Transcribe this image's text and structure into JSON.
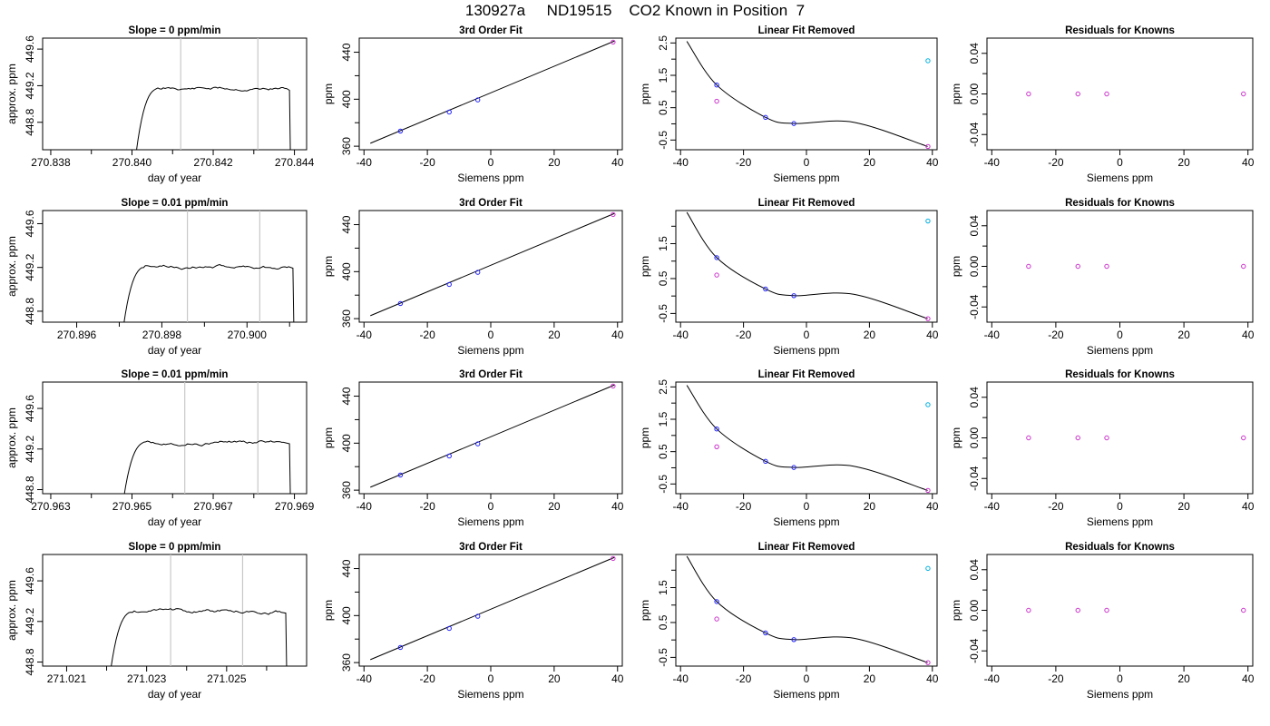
{
  "page_title": "130927a     ND19515    CO2 Known in Position  7",
  "colors": {
    "axis": "#000000",
    "line": "#000000",
    "grid": "#c8c8c8",
    "blue": "#2020ff",
    "magenta": "#cc33cc",
    "cyan": "#00b0e0"
  },
  "chart_data": [
    {
      "type": "line",
      "row": 0,
      "col": 0,
      "title": "Slope =  0  ppm/min",
      "xlabel": "day of year",
      "ylabel": "approx. ppm",
      "xlim": [
        270.8378,
        270.8443
      ],
      "ylim": [
        448.5,
        449.72
      ],
      "xticks": [
        270.838,
        270.84,
        270.842,
        270.844
      ],
      "xtick_labels": [
        "270.838",
        "270.840",
        "270.842",
        "270.844"
      ],
      "xticks_minor": [
        270.839,
        270.841,
        270.843
      ],
      "yticks": [
        448.8,
        449.2,
        449.6
      ],
      "ytick_labels": [
        "448.8",
        "449.2",
        "449.6"
      ],
      "vlines": [
        270.8412,
        270.8431
      ],
      "trace": {
        "x_start": 270.8401,
        "x_end": 270.8439,
        "y_level": 449.17,
        "noise": 0.018,
        "seed": 11
      }
    },
    {
      "type": "line",
      "row": 0,
      "col": 1,
      "title": "3rd Order Fit",
      "xlabel": "Siemens ppm",
      "ylabel": "ppm",
      "xlim": [
        -41.5,
        41.5
      ],
      "ylim": [
        357,
        452
      ],
      "xticks": [
        -40,
        -20,
        0,
        20,
        40
      ],
      "xtick_labels": [
        "-40",
        "-20",
        "0",
        "20",
        "40"
      ],
      "yticks": [
        360,
        400,
        440
      ],
      "ytick_labels": [
        "360",
        "400",
        "440"
      ],
      "yticks_minor": [
        380,
        420
      ],
      "fit_line": [
        [
          -38,
          362.5
        ],
        [
          39,
          449.5
        ]
      ],
      "points": [
        {
          "x": -28.5,
          "y": 372.9,
          "color": "blue"
        },
        {
          "x": -13.1,
          "y": 389.1,
          "color": "blue"
        },
        {
          "x": -4.1,
          "y": 399.4,
          "color": "blue"
        },
        {
          "x": 38.6,
          "y": 448.6,
          "color": "magenta"
        }
      ]
    },
    {
      "type": "scatter",
      "row": 0,
      "col": 2,
      "title": "Linear Fit Removed",
      "xlabel": "Siemens ppm",
      "ylabel": "ppm",
      "xlim": [
        -41.5,
        41.5
      ],
      "ylim": [
        -0.8,
        2.65
      ],
      "xticks": [
        -40,
        -20,
        0,
        20,
        40
      ],
      "xtick_labels": [
        "-40",
        "-20",
        "0",
        "20",
        "40"
      ],
      "yticks": [
        -0.5,
        0.5,
        1.5,
        2.5
      ],
      "ytick_labels": [
        "-0.5",
        "0.5",
        "1.5",
        "2.5"
      ],
      "yticks_minor": [
        0,
        1,
        2
      ],
      "curve_points": [
        [
          -38,
          2.55
        ],
        [
          -28.5,
          1.2
        ],
        [
          -13,
          0.2
        ],
        [
          -4,
          0.01
        ],
        [
          15,
          0.05
        ],
        [
          38.5,
          -0.7
        ]
      ],
      "points": [
        {
          "x": -28.5,
          "y": 1.2,
          "color": "blue"
        },
        {
          "x": -28.5,
          "y": 0.7,
          "color": "magenta"
        },
        {
          "x": -13,
          "y": 0.2,
          "color": "blue"
        },
        {
          "x": -4,
          "y": 0.01,
          "color": "blue"
        },
        {
          "x": 38.6,
          "y": 1.95,
          "color": "cyan"
        },
        {
          "x": 38.6,
          "y": -0.7,
          "color": "magenta"
        }
      ]
    },
    {
      "type": "scatter",
      "row": 0,
      "col": 3,
      "title": "Residuals for Knowns",
      "xlabel": "Siemens ppm",
      "ylabel": "ppm",
      "xlim": [
        -41.5,
        41.5
      ],
      "ylim": [
        -0.055,
        0.055
      ],
      "xticks": [
        -40,
        -20,
        0,
        20,
        40
      ],
      "xtick_labels": [
        "-40",
        "-20",
        "0",
        "20",
        "40"
      ],
      "yticks": [
        -0.04,
        0,
        0.04
      ],
      "ytick_labels": [
        "-0.04",
        "0.00",
        "0.04"
      ],
      "yticks_minor": [
        -0.02,
        0.02
      ],
      "points": [
        {
          "x": -28.5,
          "y": 0,
          "color": "magenta"
        },
        {
          "x": -13.1,
          "y": 0,
          "color": "magenta"
        },
        {
          "x": -4.1,
          "y": 0,
          "color": "magenta"
        },
        {
          "x": 38.6,
          "y": 0,
          "color": "magenta"
        }
      ]
    },
    {
      "type": "line",
      "row": 1,
      "col": 0,
      "title": "Slope =  0.01  ppm/min",
      "xlabel": "day of year",
      "ylabel": "approx. ppm",
      "xlim": [
        270.8952,
        270.9014
      ],
      "ylim": [
        448.7,
        449.72
      ],
      "xticks": [
        270.896,
        270.898,
        270.9
      ],
      "xtick_labels": [
        "270.896",
        "270.898",
        "270.900"
      ],
      "xticks_minor": [
        270.897,
        270.899,
        270.901
      ],
      "yticks": [
        448.8,
        449.2,
        449.6
      ],
      "ytick_labels": [
        "448.8",
        "449.2",
        "449.6"
      ],
      "vlines": [
        270.8986,
        270.9003
      ],
      "trace": {
        "x_start": 270.8971,
        "x_end": 270.9011,
        "y_level": 449.21,
        "noise": 0.016,
        "seed": 23
      }
    },
    {
      "type": "line",
      "row": 1,
      "col": 1,
      "title": "3rd Order Fit",
      "xlabel": "Siemens ppm",
      "ylabel": "ppm",
      "xlim": [
        -41.5,
        41.5
      ],
      "ylim": [
        357,
        452
      ],
      "xticks": [
        -40,
        -20,
        0,
        20,
        40
      ],
      "xtick_labels": [
        "-40",
        "-20",
        "0",
        "20",
        "40"
      ],
      "yticks": [
        360,
        400,
        440
      ],
      "ytick_labels": [
        "360",
        "400",
        "440"
      ],
      "yticks_minor": [
        380,
        420
      ],
      "fit_line": [
        [
          -38,
          362.5
        ],
        [
          39,
          449.5
        ]
      ],
      "points": [
        {
          "x": -28.5,
          "y": 372.9,
          "color": "blue"
        },
        {
          "x": -13.1,
          "y": 389.1,
          "color": "blue"
        },
        {
          "x": -4.1,
          "y": 399.4,
          "color": "blue"
        },
        {
          "x": 38.6,
          "y": 448.6,
          "color": "magenta"
        }
      ]
    },
    {
      "type": "scatter",
      "row": 1,
      "col": 2,
      "title": "Linear Fit Removed",
      "xlabel": "Siemens ppm",
      "ylabel": "ppm",
      "xlim": [
        -41.5,
        41.5
      ],
      "ylim": [
        -0.75,
        2.45
      ],
      "xticks": [
        -40,
        -20,
        0,
        20,
        40
      ],
      "xtick_labels": [
        "-40",
        "-20",
        "0",
        "20",
        "40"
      ],
      "yticks": [
        -0.5,
        0.5,
        1.5
      ],
      "ytick_labels": [
        "-0.5",
        "0.5",
        "1.5"
      ],
      "yticks_minor": [
        0,
        1,
        2
      ],
      "curve_points": [
        [
          -38,
          2.4
        ],
        [
          -28.5,
          1.1
        ],
        [
          -13,
          0.2
        ],
        [
          -4,
          0.01
        ],
        [
          15,
          0.05
        ],
        [
          38.5,
          -0.65
        ]
      ],
      "points": [
        {
          "x": -28.5,
          "y": 1.1,
          "color": "blue"
        },
        {
          "x": -28.5,
          "y": 0.6,
          "color": "magenta"
        },
        {
          "x": -13,
          "y": 0.2,
          "color": "blue"
        },
        {
          "x": -4,
          "y": 0.01,
          "color": "blue"
        },
        {
          "x": 38.6,
          "y": 2.15,
          "color": "cyan"
        },
        {
          "x": 38.6,
          "y": -0.65,
          "color": "magenta"
        }
      ]
    },
    {
      "type": "scatter",
      "row": 1,
      "col": 3,
      "title": "Residuals for Knowns",
      "xlabel": "Siemens ppm",
      "ylabel": "ppm",
      "xlim": [
        -41.5,
        41.5
      ],
      "ylim": [
        -0.055,
        0.055
      ],
      "xticks": [
        -40,
        -20,
        0,
        20,
        40
      ],
      "xtick_labels": [
        "-40",
        "-20",
        "0",
        "20",
        "40"
      ],
      "yticks": [
        -0.04,
        0,
        0.04
      ],
      "ytick_labels": [
        "-0.04",
        "0.00",
        "0.04"
      ],
      "yticks_minor": [
        -0.02,
        0.02
      ],
      "points": [
        {
          "x": -28.5,
          "y": 0,
          "color": "magenta"
        },
        {
          "x": -13.1,
          "y": 0,
          "color": "magenta"
        },
        {
          "x": -4.1,
          "y": 0,
          "color": "magenta"
        },
        {
          "x": 38.6,
          "y": 0,
          "color": "magenta"
        }
      ]
    },
    {
      "type": "line",
      "row": 2,
      "col": 0,
      "title": "Slope =  0.01  ppm/min",
      "xlabel": "day of year",
      "ylabel": "approx. ppm",
      "xlim": [
        270.9628,
        270.9693
      ],
      "ylim": [
        448.76,
        449.86
      ],
      "xticks": [
        270.963,
        270.965,
        270.967,
        270.969
      ],
      "xtick_labels": [
        "270.963",
        "270.965",
        "270.967",
        "270.969"
      ],
      "xticks_minor": [
        270.964,
        270.966,
        270.968
      ],
      "yticks": [
        448.8,
        449.2,
        449.6
      ],
      "ytick_labels": [
        "448.8",
        "449.2",
        "449.6"
      ],
      "vlines": [
        270.9663,
        270.9681
      ],
      "trace": {
        "x_start": 270.9648,
        "x_end": 270.9689,
        "y_level": 449.27,
        "noise": 0.017,
        "seed": 37
      }
    },
    {
      "type": "line",
      "row": 2,
      "col": 1,
      "title": "3rd Order Fit",
      "xlabel": "Siemens ppm",
      "ylabel": "ppm",
      "xlim": [
        -41.5,
        41.5
      ],
      "ylim": [
        357,
        452
      ],
      "xticks": [
        -40,
        -20,
        0,
        20,
        40
      ],
      "xtick_labels": [
        "-40",
        "-20",
        "0",
        "20",
        "40"
      ],
      "yticks": [
        360,
        400,
        440
      ],
      "ytick_labels": [
        "360",
        "400",
        "440"
      ],
      "yticks_minor": [
        380,
        420
      ],
      "fit_line": [
        [
          -38,
          362.5
        ],
        [
          39,
          449.5
        ]
      ],
      "points": [
        {
          "x": -28.5,
          "y": 372.9,
          "color": "blue"
        },
        {
          "x": -13.1,
          "y": 389.1,
          "color": "blue"
        },
        {
          "x": -4.1,
          "y": 399.4,
          "color": "blue"
        },
        {
          "x": 38.6,
          "y": 448.6,
          "color": "magenta"
        }
      ]
    },
    {
      "type": "scatter",
      "row": 2,
      "col": 2,
      "title": "Linear Fit Removed",
      "xlabel": "Siemens ppm",
      "ylabel": "ppm",
      "xlim": [
        -41.5,
        41.5
      ],
      "ylim": [
        -0.8,
        2.65
      ],
      "xticks": [
        -40,
        -20,
        0,
        20,
        40
      ],
      "xtick_labels": [
        "-40",
        "-20",
        "0",
        "20",
        "40"
      ],
      "yticks": [
        -0.5,
        0.5,
        1.5,
        2.5
      ],
      "ytick_labels": [
        "-0.5",
        "0.5",
        "1.5",
        "2.5"
      ],
      "yticks_minor": [
        0,
        1,
        2
      ],
      "curve_points": [
        [
          -38,
          2.55
        ],
        [
          -28.5,
          1.2
        ],
        [
          -13,
          0.2
        ],
        [
          -4,
          0.01
        ],
        [
          15,
          0.05
        ],
        [
          38.5,
          -0.7
        ]
      ],
      "points": [
        {
          "x": -28.5,
          "y": 1.2,
          "color": "blue"
        },
        {
          "x": -28.5,
          "y": 0.65,
          "color": "magenta"
        },
        {
          "x": -13,
          "y": 0.2,
          "color": "blue"
        },
        {
          "x": -4,
          "y": 0.01,
          "color": "blue"
        },
        {
          "x": 38.6,
          "y": 1.95,
          "color": "cyan"
        },
        {
          "x": 38.6,
          "y": -0.7,
          "color": "magenta"
        }
      ]
    },
    {
      "type": "scatter",
      "row": 2,
      "col": 3,
      "title": "Residuals for Knowns",
      "xlabel": "Siemens ppm",
      "ylabel": "ppm",
      "xlim": [
        -41.5,
        41.5
      ],
      "ylim": [
        -0.055,
        0.055
      ],
      "xticks": [
        -40,
        -20,
        0,
        20,
        40
      ],
      "xtick_labels": [
        "-40",
        "-20",
        "0",
        "20",
        "40"
      ],
      "yticks": [
        -0.04,
        0,
        0.04
      ],
      "ytick_labels": [
        "-0.04",
        "0.00",
        "0.04"
      ],
      "yticks_minor": [
        -0.02,
        0.02
      ],
      "points": [
        {
          "x": -28.5,
          "y": 0,
          "color": "magenta"
        },
        {
          "x": -13.1,
          "y": 0,
          "color": "magenta"
        },
        {
          "x": -4.1,
          "y": 0,
          "color": "magenta"
        },
        {
          "x": 38.6,
          "y": 0,
          "color": "magenta"
        }
      ]
    },
    {
      "type": "line",
      "row": 3,
      "col": 0,
      "title": "Slope =  0  ppm/min",
      "xlabel": "day of year",
      "ylabel": "approx. ppm",
      "xlim": [
        271.0204,
        271.027
      ],
      "ylim": [
        448.76,
        449.86
      ],
      "xticks": [
        271.021,
        271.023,
        271.025
      ],
      "xtick_labels": [
        "271.021",
        "271.023",
        "271.025"
      ],
      "xticks_minor": [
        271.022,
        271.024,
        271.026
      ],
      "yticks": [
        448.8,
        449.2,
        449.6
      ],
      "ytick_labels": [
        "448.8",
        "449.2",
        "449.6"
      ],
      "vlines": [
        271.0236,
        271.0254
      ],
      "trace": {
        "x_start": 271.0221,
        "x_end": 271.0265,
        "y_level": 449.3,
        "noise": 0.018,
        "seed": 53
      }
    },
    {
      "type": "line",
      "row": 3,
      "col": 1,
      "title": "3rd Order Fit",
      "xlabel": "Siemens ppm",
      "ylabel": "ppm",
      "xlim": [
        -41.5,
        41.5
      ],
      "ylim": [
        357,
        452
      ],
      "xticks": [
        -40,
        -20,
        0,
        20,
        40
      ],
      "xtick_labels": [
        "-40",
        "-20",
        "0",
        "20",
        "40"
      ],
      "yticks": [
        360,
        400,
        440
      ],
      "ytick_labels": [
        "360",
        "400",
        "440"
      ],
      "yticks_minor": [
        380,
        420
      ],
      "fit_line": [
        [
          -38,
          362.5
        ],
        [
          39,
          449.5
        ]
      ],
      "points": [
        {
          "x": -28.5,
          "y": 372.9,
          "color": "blue"
        },
        {
          "x": -13.1,
          "y": 389.1,
          "color": "blue"
        },
        {
          "x": -4.1,
          "y": 399.4,
          "color": "blue"
        },
        {
          "x": 38.6,
          "y": 448.6,
          "color": "magenta"
        }
      ]
    },
    {
      "type": "scatter",
      "row": 3,
      "col": 2,
      "title": "Linear Fit Removed",
      "xlabel": "Siemens ppm",
      "ylabel": "ppm",
      "xlim": [
        -41.5,
        41.5
      ],
      "ylim": [
        -0.75,
        2.45
      ],
      "xticks": [
        -40,
        -20,
        0,
        20,
        40
      ],
      "xtick_labels": [
        "-40",
        "-20",
        "0",
        "20",
        "40"
      ],
      "yticks": [
        -0.5,
        0.5,
        1.5
      ],
      "ytick_labels": [
        "-0.5",
        "0.5",
        "1.5"
      ],
      "yticks_minor": [
        0,
        1,
        2
      ],
      "curve_points": [
        [
          -38,
          2.4
        ],
        [
          -28.5,
          1.1
        ],
        [
          -13,
          0.2
        ],
        [
          -4,
          0.01
        ],
        [
          15,
          0.05
        ],
        [
          38.5,
          -0.65
        ]
      ],
      "points": [
        {
          "x": -28.5,
          "y": 1.1,
          "color": "blue"
        },
        {
          "x": -28.5,
          "y": 0.6,
          "color": "magenta"
        },
        {
          "x": -13,
          "y": 0.2,
          "color": "blue"
        },
        {
          "x": -4,
          "y": 0.01,
          "color": "blue"
        },
        {
          "x": 38.6,
          "y": 2.05,
          "color": "cyan"
        },
        {
          "x": 38.6,
          "y": -0.65,
          "color": "magenta"
        }
      ]
    },
    {
      "type": "scatter",
      "row": 3,
      "col": 3,
      "title": "Residuals for Knowns",
      "xlabel": "Siemens ppm",
      "ylabel": "ppm",
      "xlim": [
        -41.5,
        41.5
      ],
      "ylim": [
        -0.055,
        0.055
      ],
      "xticks": [
        -40,
        -20,
        0,
        20,
        40
      ],
      "xtick_labels": [
        "-40",
        "-20",
        "0",
        "20",
        "40"
      ],
      "yticks": [
        -0.04,
        0,
        0.04
      ],
      "ytick_labels": [
        "-0.04",
        "0.00",
        "0.04"
      ],
      "yticks_minor": [
        -0.02,
        0.02
      ],
      "points": [
        {
          "x": -28.5,
          "y": 0,
          "color": "magenta"
        },
        {
          "x": -13.1,
          "y": 0,
          "color": "magenta"
        },
        {
          "x": -4.1,
          "y": 0,
          "color": "magenta"
        },
        {
          "x": 38.6,
          "y": 0,
          "color": "magenta"
        }
      ]
    }
  ]
}
